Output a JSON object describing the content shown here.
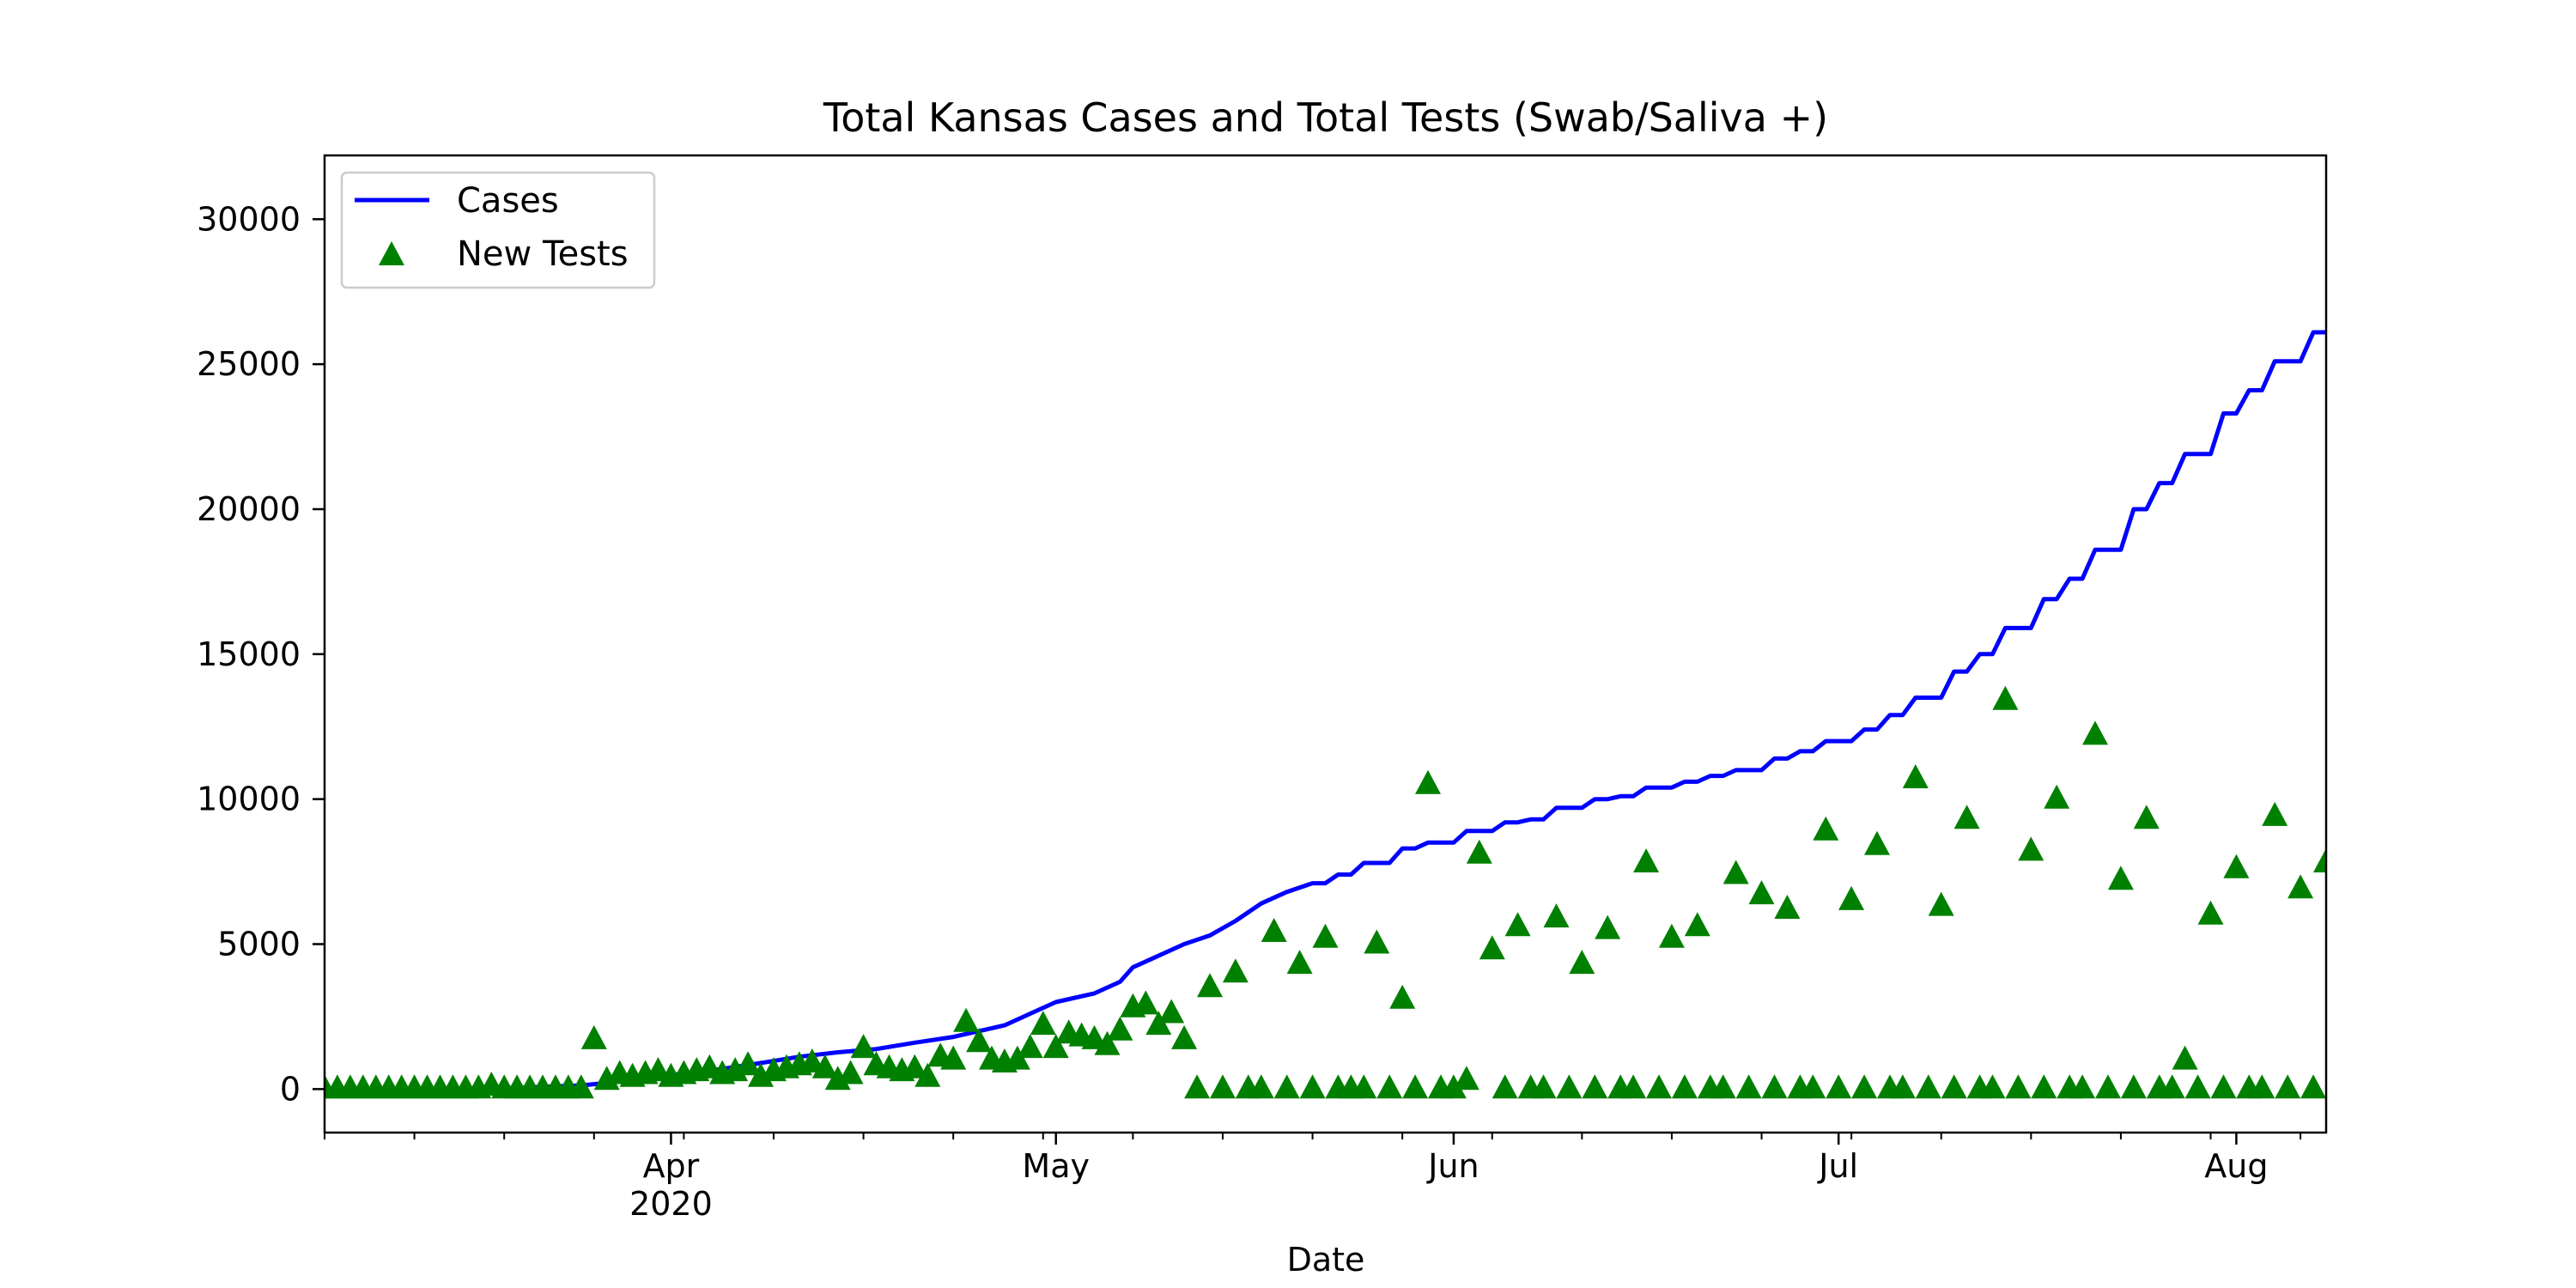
{
  "chart_data": {
    "type": "line",
    "title": "Total Kansas Cases and Total Tests (Swab/Saliva +)",
    "xlabel": "Date",
    "ylabel": "",
    "xlim": [
      "2020-03-05",
      "2020-08-08"
    ],
    "ylim": [
      -1500,
      32200
    ],
    "yticks": [
      0,
      5000,
      10000,
      15000,
      20000,
      25000,
      30000
    ],
    "xticks": [
      {
        "date": "2020-04-01",
        "label": "Apr",
        "sublabel": "2020"
      },
      {
        "date": "2020-05-01",
        "label": "May",
        "sublabel": ""
      },
      {
        "date": "2020-06-01",
        "label": "Jun",
        "sublabel": ""
      },
      {
        "date": "2020-07-01",
        "label": "Jul",
        "sublabel": ""
      },
      {
        "date": "2020-08-01",
        "label": "Aug",
        "sublabel": ""
      }
    ],
    "legend_position": "top-left",
    "grid": false,
    "series": [
      {
        "name": "Cases",
        "kind": "line",
        "color": "#0000ff",
        "points": [
          [
            "2020-03-05",
            0
          ],
          [
            "2020-03-13",
            5
          ],
          [
            "2020-03-20",
            44
          ],
          [
            "2020-03-25",
            126
          ],
          [
            "2020-03-28",
            260
          ],
          [
            "2020-04-01",
            482
          ],
          [
            "2020-04-05",
            698
          ],
          [
            "2020-04-08",
            900
          ],
          [
            "2020-04-11",
            1116
          ],
          [
            "2020-04-14",
            1268
          ],
          [
            "2020-04-17",
            1380
          ],
          [
            "2020-04-20",
            1600
          ],
          [
            "2020-04-23",
            1800
          ],
          [
            "2020-04-25",
            2000
          ],
          [
            "2020-04-27",
            2200
          ],
          [
            "2020-04-29",
            2600
          ],
          [
            "2020-05-01",
            3000
          ],
          [
            "2020-05-04",
            3300
          ],
          [
            "2020-05-06",
            3700
          ],
          [
            "2020-05-07",
            4200
          ],
          [
            "2020-05-08",
            4400
          ],
          [
            "2020-05-11",
            5000
          ],
          [
            "2020-05-13",
            5300
          ],
          [
            "2020-05-15",
            5800
          ],
          [
            "2020-05-17",
            6400
          ],
          [
            "2020-05-19",
            6800
          ],
          [
            "2020-05-21",
            7100
          ],
          [
            "2020-05-22",
            7100
          ],
          [
            "2020-05-23",
            7400
          ],
          [
            "2020-05-24",
            7400
          ],
          [
            "2020-05-25",
            7800
          ],
          [
            "2020-05-27",
            7800
          ],
          [
            "2020-05-28",
            8300
          ],
          [
            "2020-05-29",
            8300
          ],
          [
            "2020-05-30",
            8500
          ],
          [
            "2020-06-01",
            8500
          ],
          [
            "2020-06-02",
            8900
          ],
          [
            "2020-06-04",
            8900
          ],
          [
            "2020-06-05",
            9200
          ],
          [
            "2020-06-06",
            9200
          ],
          [
            "2020-06-07",
            9300
          ],
          [
            "2020-06-08",
            9300
          ],
          [
            "2020-06-09",
            9700
          ],
          [
            "2020-06-11",
            9700
          ],
          [
            "2020-06-12",
            10000
          ],
          [
            "2020-06-13",
            10000
          ],
          [
            "2020-06-14",
            10100
          ],
          [
            "2020-06-15",
            10100
          ],
          [
            "2020-06-16",
            10400
          ],
          [
            "2020-06-18",
            10400
          ],
          [
            "2020-06-19",
            10600
          ],
          [
            "2020-06-20",
            10600
          ],
          [
            "2020-06-21",
            10800
          ],
          [
            "2020-06-22",
            10800
          ],
          [
            "2020-06-23",
            11000
          ],
          [
            "2020-06-25",
            11000
          ],
          [
            "2020-06-26",
            11400
          ],
          [
            "2020-06-27",
            11400
          ],
          [
            "2020-06-28",
            11650
          ],
          [
            "2020-06-29",
            11650
          ],
          [
            "2020-06-30",
            12000
          ],
          [
            "2020-07-02",
            12000
          ],
          [
            "2020-07-03",
            12400
          ],
          [
            "2020-07-04",
            12400
          ],
          [
            "2020-07-05",
            12900
          ],
          [
            "2020-07-06",
            12900
          ],
          [
            "2020-07-07",
            13500
          ],
          [
            "2020-07-09",
            13500
          ],
          [
            "2020-07-10",
            14400
          ],
          [
            "2020-07-11",
            14400
          ],
          [
            "2020-07-12",
            15000
          ],
          [
            "2020-07-13",
            15000
          ],
          [
            "2020-07-14",
            15900
          ],
          [
            "2020-07-16",
            15900
          ],
          [
            "2020-07-17",
            16900
          ],
          [
            "2020-07-18",
            16900
          ],
          [
            "2020-07-19",
            17600
          ],
          [
            "2020-07-20",
            17600
          ],
          [
            "2020-07-21",
            18600
          ],
          [
            "2020-07-23",
            18600
          ],
          [
            "2020-07-24",
            20000
          ],
          [
            "2020-07-25",
            20000
          ],
          [
            "2020-07-26",
            20900
          ],
          [
            "2020-07-27",
            20900
          ],
          [
            "2020-07-28",
            21900
          ],
          [
            "2020-07-30",
            21900
          ],
          [
            "2020-07-31",
            23300
          ],
          [
            "2020-08-01",
            23300
          ],
          [
            "2020-08-02",
            24100
          ],
          [
            "2020-08-03",
            24100
          ],
          [
            "2020-08-04",
            25100
          ],
          [
            "2020-08-06",
            25100
          ],
          [
            "2020-08-07",
            26100
          ],
          [
            "2020-08-08",
            26100
          ]
        ]
      },
      {
        "name": "New Tests",
        "kind": "scatter",
        "marker": "triangle-up",
        "color": "#008000",
        "points": [
          [
            "2020-03-05",
            0
          ],
          [
            "2020-03-06",
            0
          ],
          [
            "2020-03-07",
            0
          ],
          [
            "2020-03-08",
            0
          ],
          [
            "2020-03-09",
            0
          ],
          [
            "2020-03-10",
            0
          ],
          [
            "2020-03-11",
            0
          ],
          [
            "2020-03-12",
            0
          ],
          [
            "2020-03-13",
            0
          ],
          [
            "2020-03-14",
            0
          ],
          [
            "2020-03-15",
            0
          ],
          [
            "2020-03-16",
            0
          ],
          [
            "2020-03-17",
            0
          ],
          [
            "2020-03-18",
            100
          ],
          [
            "2020-03-19",
            0
          ],
          [
            "2020-03-20",
            0
          ],
          [
            "2020-03-21",
            0
          ],
          [
            "2020-03-22",
            0
          ],
          [
            "2020-03-23",
            0
          ],
          [
            "2020-03-24",
            0
          ],
          [
            "2020-03-25",
            0
          ],
          [
            "2020-03-26",
            1700
          ],
          [
            "2020-03-27",
            300
          ],
          [
            "2020-03-28",
            500
          ],
          [
            "2020-03-29",
            400
          ],
          [
            "2020-03-30",
            500
          ],
          [
            "2020-03-31",
            600
          ],
          [
            "2020-04-01",
            400
          ],
          [
            "2020-04-02",
            500
          ],
          [
            "2020-04-03",
            600
          ],
          [
            "2020-04-04",
            700
          ],
          [
            "2020-04-05",
            500
          ],
          [
            "2020-04-06",
            600
          ],
          [
            "2020-04-07",
            800
          ],
          [
            "2020-04-08",
            400
          ],
          [
            "2020-04-09",
            600
          ],
          [
            "2020-04-10",
            700
          ],
          [
            "2020-04-11",
            800
          ],
          [
            "2020-04-12",
            900
          ],
          [
            "2020-04-13",
            700
          ],
          [
            "2020-04-14",
            300
          ],
          [
            "2020-04-15",
            500
          ],
          [
            "2020-04-16",
            1400
          ],
          [
            "2020-04-17",
            800
          ],
          [
            "2020-04-18",
            700
          ],
          [
            "2020-04-19",
            600
          ],
          [
            "2020-04-20",
            700
          ],
          [
            "2020-04-21",
            400
          ],
          [
            "2020-04-22",
            1100
          ],
          [
            "2020-04-23",
            1000
          ],
          [
            "2020-04-24",
            2300
          ],
          [
            "2020-04-25",
            1600
          ],
          [
            "2020-04-26",
            1000
          ],
          [
            "2020-04-27",
            900
          ],
          [
            "2020-04-28",
            1000
          ],
          [
            "2020-04-29",
            1400
          ],
          [
            "2020-04-30",
            2200
          ],
          [
            "2020-05-01",
            1400
          ],
          [
            "2020-05-02",
            1900
          ],
          [
            "2020-05-03",
            1800
          ],
          [
            "2020-05-04",
            1700
          ],
          [
            "2020-05-05",
            1500
          ],
          [
            "2020-05-06",
            2000
          ],
          [
            "2020-05-07",
            2800
          ],
          [
            "2020-05-08",
            2900
          ],
          [
            "2020-05-09",
            2200
          ],
          [
            "2020-05-10",
            2600
          ],
          [
            "2020-05-11",
            1700
          ],
          [
            "2020-05-12",
            0
          ],
          [
            "2020-05-13",
            3500
          ],
          [
            "2020-05-14",
            0
          ],
          [
            "2020-05-15",
            4000
          ],
          [
            "2020-05-16",
            0
          ],
          [
            "2020-05-17",
            0
          ],
          [
            "2020-05-18",
            5400
          ],
          [
            "2020-05-19",
            0
          ],
          [
            "2020-05-20",
            4300
          ],
          [
            "2020-05-21",
            0
          ],
          [
            "2020-05-22",
            5200
          ],
          [
            "2020-05-23",
            0
          ],
          [
            "2020-05-24",
            0
          ],
          [
            "2020-05-25",
            0
          ],
          [
            "2020-05-26",
            5000
          ],
          [
            "2020-05-27",
            0
          ],
          [
            "2020-05-28",
            3100
          ],
          [
            "2020-05-29",
            0
          ],
          [
            "2020-05-30",
            10500
          ],
          [
            "2020-05-31",
            0
          ],
          [
            "2020-06-01",
            0
          ],
          [
            "2020-06-02",
            300
          ],
          [
            "2020-06-03",
            8100
          ],
          [
            "2020-06-04",
            4800
          ],
          [
            "2020-06-05",
            0
          ],
          [
            "2020-06-06",
            5600
          ],
          [
            "2020-06-07",
            0
          ],
          [
            "2020-06-08",
            0
          ],
          [
            "2020-06-09",
            5900
          ],
          [
            "2020-06-10",
            0
          ],
          [
            "2020-06-11",
            4300
          ],
          [
            "2020-06-12",
            0
          ],
          [
            "2020-06-13",
            5500
          ],
          [
            "2020-06-14",
            0
          ],
          [
            "2020-06-15",
            0
          ],
          [
            "2020-06-16",
            7800
          ],
          [
            "2020-06-17",
            0
          ],
          [
            "2020-06-18",
            5200
          ],
          [
            "2020-06-19",
            0
          ],
          [
            "2020-06-20",
            5600
          ],
          [
            "2020-06-21",
            0
          ],
          [
            "2020-06-22",
            0
          ],
          [
            "2020-06-23",
            7400
          ],
          [
            "2020-06-24",
            0
          ],
          [
            "2020-06-25",
            6700
          ],
          [
            "2020-06-26",
            0
          ],
          [
            "2020-06-27",
            6200
          ],
          [
            "2020-06-28",
            0
          ],
          [
            "2020-06-29",
            0
          ],
          [
            "2020-06-30",
            8900
          ],
          [
            "2020-07-01",
            0
          ],
          [
            "2020-07-02",
            6500
          ],
          [
            "2020-07-03",
            0
          ],
          [
            "2020-07-04",
            8400
          ],
          [
            "2020-07-05",
            0
          ],
          [
            "2020-07-06",
            0
          ],
          [
            "2020-07-07",
            10700
          ],
          [
            "2020-07-08",
            0
          ],
          [
            "2020-07-09",
            6300
          ],
          [
            "2020-07-10",
            0
          ],
          [
            "2020-07-11",
            9300
          ],
          [
            "2020-07-12",
            0
          ],
          [
            "2020-07-13",
            0
          ],
          [
            "2020-07-14",
            13400
          ],
          [
            "2020-07-15",
            0
          ],
          [
            "2020-07-16",
            8200
          ],
          [
            "2020-07-17",
            0
          ],
          [
            "2020-07-18",
            10000
          ],
          [
            "2020-07-19",
            0
          ],
          [
            "2020-07-20",
            0
          ],
          [
            "2020-07-21",
            12200
          ],
          [
            "2020-07-22",
            0
          ],
          [
            "2020-07-23",
            7200
          ],
          [
            "2020-07-24",
            0
          ],
          [
            "2020-07-25",
            9300
          ],
          [
            "2020-07-26",
            0
          ],
          [
            "2020-07-27",
            0
          ],
          [
            "2020-07-28",
            1000
          ],
          [
            "2020-07-29",
            0
          ],
          [
            "2020-07-30",
            6000
          ],
          [
            "2020-07-31",
            0
          ],
          [
            "2020-08-01",
            7600
          ],
          [
            "2020-08-02",
            0
          ],
          [
            "2020-08-03",
            0
          ],
          [
            "2020-08-04",
            9400
          ],
          [
            "2020-08-05",
            0
          ],
          [
            "2020-08-06",
            6900
          ],
          [
            "2020-08-07",
            0
          ],
          [
            "2020-08-08",
            7800
          ]
        ]
      }
    ]
  }
}
